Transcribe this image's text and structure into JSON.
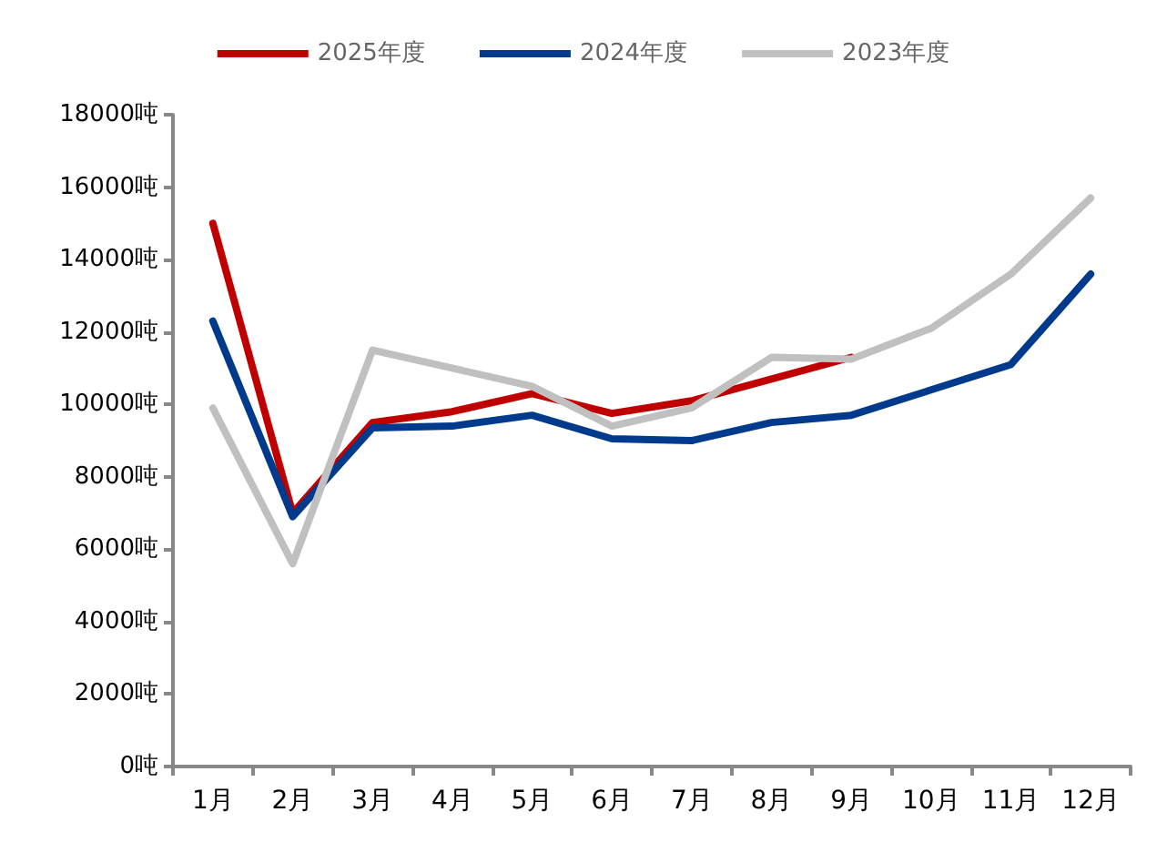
{
  "chart_data": {
    "type": "line",
    "categories": [
      "1月",
      "2月",
      "3月",
      "4月",
      "5月",
      "6月",
      "7月",
      "8月",
      "9月",
      "10月",
      "11月",
      "12月"
    ],
    "series": [
      {
        "name": "2025年度",
        "color": "#c00000",
        "values": [
          15000,
          7000,
          9500,
          9800,
          10300,
          9750,
          10100,
          10700,
          11300,
          null,
          null,
          null
        ]
      },
      {
        "name": "2024年度",
        "color": "#003a8c",
        "values": [
          12300,
          6900,
          9350,
          9400,
          9700,
          9050,
          9000,
          9500,
          9700,
          10400,
          11100,
          13600
        ]
      },
      {
        "name": "2023年度",
        "color": "#c0c0c0",
        "values": [
          9900,
          5600,
          11500,
          11000,
          10500,
          9400,
          9900,
          11300,
          11250,
          12100,
          13600,
          15700
        ]
      }
    ],
    "ylim": [
      0,
      18000
    ],
    "yticks": [
      {
        "value": 0,
        "label": "0吨"
      },
      {
        "value": 2000,
        "label": "2000吨"
      },
      {
        "value": 4000,
        "label": "4000吨"
      },
      {
        "value": 6000,
        "label": "6000吨"
      },
      {
        "value": 8000,
        "label": "8000吨"
      },
      {
        "value": 10000,
        "label": "10000吨"
      },
      {
        "value": 12000,
        "label": "12000吨"
      },
      {
        "value": 14000,
        "label": "14000吨"
      },
      {
        "value": 16000,
        "label": "16000吨"
      },
      {
        "value": 18000,
        "label": "18000吨"
      }
    ],
    "grid": false,
    "legend": "top",
    "marker": "none",
    "line_style": "solid"
  }
}
